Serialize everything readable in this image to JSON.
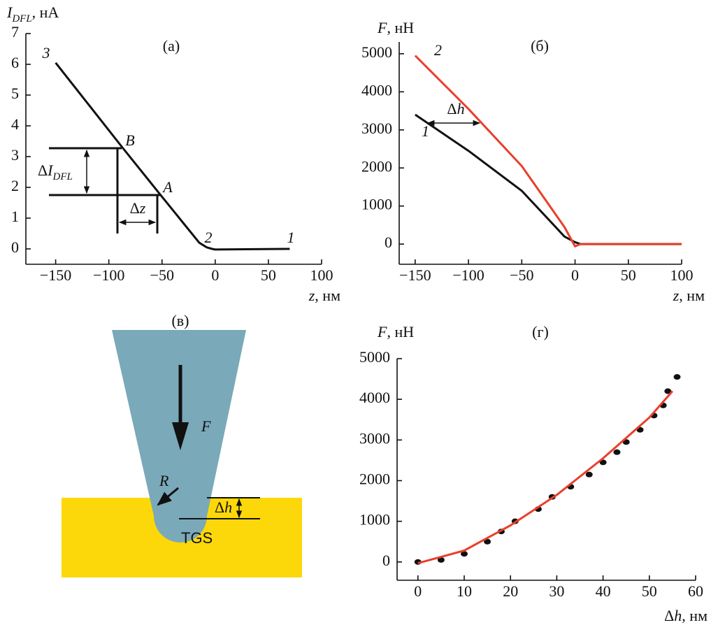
{
  "chart_data": [
    {
      "type": "line",
      "title": "(а)",
      "xlabel": [
        {
          "text": "z",
          "style": "italic"
        },
        {
          "text": ", нм",
          "style": "normal"
        }
      ],
      "ylabel": [
        {
          "text": "I",
          "style": "italic"
        },
        {
          "text": "DFL",
          "style": "sub"
        },
        {
          "text": ", нА",
          "style": "normal"
        }
      ],
      "xlim": [
        -178,
        100
      ],
      "ylim": [
        -0.5,
        7
      ],
      "xticks": [
        {
          "value": -150,
          "label": "−150"
        },
        {
          "value": -100,
          "label": "−100"
        },
        {
          "value": -50,
          "label": "−50"
        },
        0,
        50,
        100
      ],
      "yticks": [
        0,
        1,
        2,
        3,
        4,
        5,
        6,
        7
      ],
      "series": [
        {
          "color": "#111111",
          "x": [
            -150,
            -88,
            -52,
            -15,
            -8,
            -3,
            0,
            70
          ],
          "values": [
            6.05,
            3.33,
            1.78,
            0.2,
            0.05,
            0,
            -0.02,
            0
          ]
        }
      ],
      "annotations": [
        [
          {
            "text": "3",
            "style": "italic"
          }
        ],
        [
          {
            "text": "B",
            "style": "italic"
          }
        ],
        [
          {
            "text": "A",
            "style": "italic"
          }
        ],
        [
          {
            "text": "2",
            "style": "italic"
          }
        ],
        [
          {
            "text": "1",
            "style": "italic"
          }
        ],
        [
          {
            "text": "Δ",
            "style": "normal"
          },
          {
            "text": "I",
            "style": "italic"
          },
          {
            "text": "DFL",
            "style": "sub"
          }
        ],
        [
          {
            "text": "Δ",
            "style": "normal"
          },
          {
            "text": "z",
            "style": "italic"
          }
        ]
      ]
    },
    {
      "type": "line",
      "title": "(б)",
      "xlabel": [
        {
          "text": "z",
          "style": "italic"
        },
        {
          "text": ", нм",
          "style": "normal"
        }
      ],
      "ylabel": [
        {
          "text": "F",
          "style": "italic"
        },
        {
          "text": ", нН",
          "style": "normal"
        }
      ],
      "xlim": [
        -165,
        100
      ],
      "ylim": [
        -530,
        5310
      ],
      "xticks": [
        {
          "value": -150,
          "label": "−150"
        },
        {
          "value": -100,
          "label": "−100"
        },
        {
          "value": -50,
          "label": "−50"
        },
        0,
        50,
        100
      ],
      "yticks": [
        0,
        1000,
        2000,
        3000,
        4000,
        5000
      ],
      "series": [
        {
          "name": "1",
          "color": "#111111",
          "x": [
            -150,
            -100,
            -50,
            -20,
            -10,
            0,
            5,
            100
          ],
          "values": [
            3400,
            2450,
            1400,
            500,
            200,
            50,
            0,
            0
          ]
        },
        {
          "name": "2",
          "color": "#e8402a",
          "x": [
            -150,
            -100,
            -50,
            -10,
            0,
            5,
            100
          ],
          "values": [
            4950,
            3550,
            2050,
            450,
            -60,
            0,
            0
          ]
        }
      ],
      "annotations": [
        [
          {
            "text": "Δ",
            "style": "normal"
          },
          {
            "text": "h",
            "style": "italic"
          }
        ]
      ]
    },
    {
      "type": "scatter",
      "title": "(г)",
      "xlabel": [
        {
          "text": "Δ",
          "style": "normal"
        },
        {
          "text": "h",
          "style": "italic"
        },
        {
          "text": ", нм",
          "style": "normal"
        }
      ],
      "ylabel": [
        {
          "text": "F",
          "style": "italic"
        },
        {
          "text": ", нН",
          "style": "normal"
        }
      ],
      "xlim": [
        -4.5,
        60
      ],
      "ylim": [
        -450,
        5000
      ],
      "xticks": [
        0,
        10,
        20,
        30,
        40,
        50,
        60
      ],
      "yticks": [
        0,
        1000,
        2000,
        3000,
        4000,
        5000
      ],
      "series": [
        {
          "color": "#111111",
          "mode": "points",
          "x": [
            0,
            5,
            10,
            15,
            18,
            21,
            26,
            29,
            33,
            37,
            40,
            43,
            45,
            48,
            51,
            53,
            54,
            56
          ],
          "values": [
            0,
            50,
            200,
            500,
            750,
            1000,
            1300,
            1600,
            1850,
            2150,
            2450,
            2700,
            2950,
            3250,
            3600,
            3850,
            4200,
            4550
          ]
        },
        {
          "color": "#e8402a",
          "mode": "line",
          "x": [
            0,
            10,
            20,
            30,
            40,
            50,
            55
          ],
          "values": [
            -30,
            280,
            900,
            1650,
            2550,
            3550,
            4200
          ]
        }
      ]
    }
  ],
  "diagram": {
    "label": "(в)",
    "force": "F",
    "radius": "R",
    "depth": [
      {
        "text": "Δ",
        "style": "normal"
      },
      {
        "text": "h",
        "style": "italic"
      }
    ],
    "sample": "TGS"
  }
}
